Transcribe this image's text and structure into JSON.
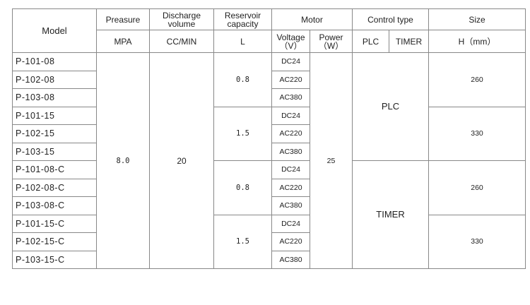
{
  "header": {
    "model": "Model",
    "pressure": "Preasure",
    "discharge": "Discharge volume",
    "reservoir": "Reservoir capacity",
    "motor": "Motor",
    "control": "Control type",
    "size": "Size",
    "pressure_unit": "MPA",
    "discharge_unit": "CC/MIN",
    "reservoir_unit": "L",
    "voltage": "Voltage（V）",
    "power": "Power（W）",
    "plc": "PLC",
    "timer": "TIMER",
    "size_unit": "H（mm）"
  },
  "rows": [
    {
      "model": "P-101-08",
      "voltage": "DC24"
    },
    {
      "model": "P-102-08",
      "voltage": "AC220"
    },
    {
      "model": "P-103-08",
      "voltage": "AC380"
    },
    {
      "model": "P-101-15",
      "voltage": "DC24"
    },
    {
      "model": "P-102-15",
      "voltage": "AC220"
    },
    {
      "model": "P-103-15",
      "voltage": "AC380"
    },
    {
      "model": "P-101-08-C",
      "voltage": "DC24"
    },
    {
      "model": "P-102-08-C",
      "voltage": "AC220"
    },
    {
      "model": "P-103-08-C",
      "voltage": "AC380"
    },
    {
      "model": "P-101-15-C",
      "voltage": "DC24"
    },
    {
      "model": "P-102-15-C",
      "voltage": "AC220"
    },
    {
      "model": "P-103-15-C",
      "voltage": "AC380"
    }
  ],
  "merged": {
    "pressure": "8.0",
    "discharge": "20",
    "power": "25",
    "reservoir": [
      "0.8",
      "1.5",
      "0.8",
      "1.5"
    ],
    "control": [
      "PLC",
      "TIMER"
    ],
    "size": [
      "260",
      "330",
      "260",
      "330"
    ]
  }
}
